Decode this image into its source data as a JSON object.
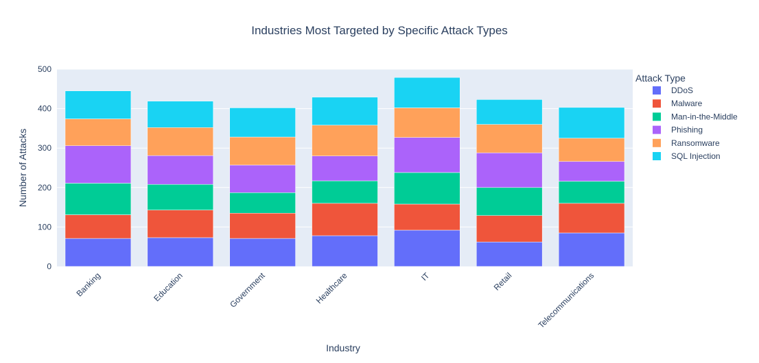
{
  "chart_data": {
    "type": "bar",
    "stacked": true,
    "title": "Industries Most Targeted by Specific Attack Types",
    "xlabel": "Industry",
    "ylabel": "Number of Attacks",
    "ylim": [
      0,
      500
    ],
    "yticks": [
      0,
      100,
      200,
      300,
      400,
      500
    ],
    "grid": true,
    "legend_title": "Attack Type",
    "legend_position": "right",
    "categories": [
      "Banking",
      "Education",
      "Government",
      "Healthcare",
      "IT",
      "Retail",
      "Telecommunications"
    ],
    "series": [
      {
        "name": "DDoS",
        "color": "#636efa",
        "values": [
          71,
          73,
          71,
          78,
          92,
          62,
          85
        ]
      },
      {
        "name": "Malware",
        "color": "#ef553b",
        "values": [
          60,
          70,
          64,
          82,
          66,
          67,
          75
        ]
      },
      {
        "name": "Man-in-the-Middle",
        "color": "#00cc96",
        "values": [
          80,
          65,
          52,
          57,
          80,
          71,
          56
        ]
      },
      {
        "name": "Phishing",
        "color": "#ab63fa",
        "values": [
          95,
          73,
          70,
          63,
          89,
          88,
          50
        ]
      },
      {
        "name": "Ransomware",
        "color": "#ffa15a",
        "values": [
          68,
          71,
          71,
          78,
          75,
          72,
          59
        ]
      },
      {
        "name": "SQL Injection",
        "color": "#19d3f3",
        "values": [
          71,
          67,
          74,
          71,
          77,
          63,
          78
        ]
      }
    ]
  }
}
